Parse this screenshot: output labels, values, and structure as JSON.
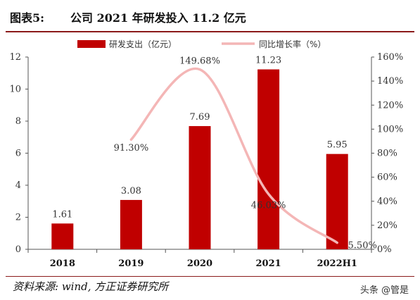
{
  "figure": {
    "label": "图表5:",
    "title": "公司 2021 年研发投入 11.2 亿元",
    "source": "资料来源: wind, 方正证券研究所",
    "watermark": "头条 @管是"
  },
  "chart_data": {
    "type": "bar",
    "categories": [
      "2018",
      "2019",
      "2020",
      "2021",
      "2022H1"
    ],
    "series": [
      {
        "name": "研发支出（亿元）",
        "type": "bar",
        "axis": "left",
        "values": [
          1.61,
          3.08,
          7.69,
          11.23,
          5.95
        ],
        "labels": [
          "1.61",
          "3.08",
          "7.69",
          "11.23",
          "5.95"
        ],
        "color": "#c00000"
      },
      {
        "name": "同比增长率（%）",
        "type": "line",
        "axis": "right",
        "values": [
          null,
          91.3,
          149.68,
          46.03,
          5.5
        ],
        "labels": [
          "",
          "91.30%",
          "149.68%",
          "46.03%",
          "5.50%"
        ],
        "color": "#f4b6b6"
      }
    ],
    "y_left": {
      "min": 0,
      "max": 12,
      "ticks": [
        "0",
        "2",
        "4",
        "6",
        "8",
        "10",
        "12"
      ]
    },
    "y_right": {
      "min": 0,
      "max": 160,
      "ticks": [
        "0%",
        "20%",
        "40%",
        "60%",
        "80%",
        "100%",
        "120%",
        "140%",
        "160%"
      ]
    },
    "legend_position": "top",
    "grid": false
  }
}
